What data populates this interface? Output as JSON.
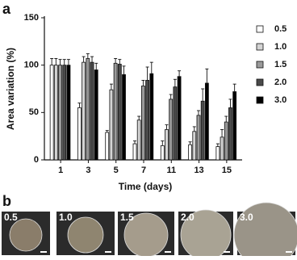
{
  "panel_labels": [
    "a",
    "b"
  ],
  "chart_data": {
    "type": "bar",
    "y_label": "Area variation (%)",
    "x_label": "Time (days)",
    "categories": [
      "1",
      "3",
      "5",
      "7",
      "11",
      "13",
      "15"
    ],
    "ylim": [
      0,
      150
    ],
    "yticks": [
      0,
      50,
      100,
      150
    ],
    "series": [
      {
        "name": "0.5",
        "color": "#ffffff",
        "values": [
          100,
          55,
          29,
          17,
          15,
          16,
          14
        ],
        "errors": [
          7,
          5,
          2,
          3,
          5,
          3,
          3
        ]
      },
      {
        "name": "1.0",
        "color": "#d4d4d4",
        "values": [
          100,
          103,
          74,
          42,
          32,
          30,
          24
        ],
        "errors": [
          7,
          6,
          6,
          4,
          5,
          5,
          8
        ]
      },
      {
        "name": "1.5",
        "color": "#9a9a9a",
        "values": [
          100,
          107,
          102,
          78,
          64,
          47,
          40
        ],
        "errors": [
          6,
          5,
          5,
          6,
          5,
          5,
          6
        ]
      },
      {
        "name": "2.0",
        "color": "#4a4a4a",
        "values": [
          100,
          103,
          101,
          84,
          77,
          62,
          55
        ],
        "errors": [
          6,
          6,
          5,
          14,
          8,
          13,
          9
        ]
      },
      {
        "name": "3.0",
        "color": "#000000",
        "values": [
          100,
          95,
          90,
          91,
          88,
          81,
          72
        ],
        "errors": [
          6,
          7,
          9,
          12,
          6,
          15,
          8
        ]
      }
    ]
  },
  "micrographs": [
    "0.5",
    "1.0",
    "1.5",
    "2.0",
    "3.0"
  ]
}
